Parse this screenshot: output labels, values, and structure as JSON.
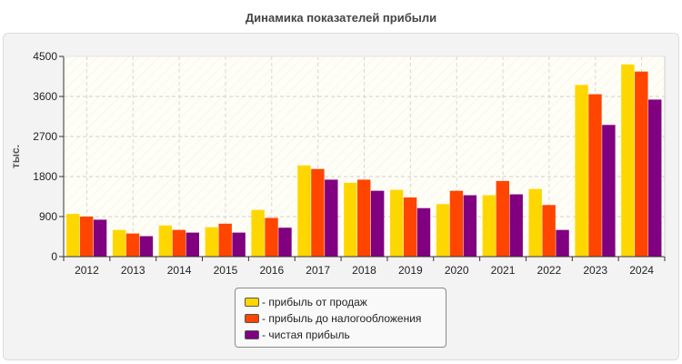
{
  "chart_data": {
    "type": "bar",
    "title": "Динамика показателей прибыли",
    "ylabel": "тыс.",
    "xlabel": "",
    "ylim": [
      0,
      4500
    ],
    "yticks": [
      0,
      900,
      1800,
      2700,
      3600,
      4500
    ],
    "categories": [
      "2012",
      "2013",
      "2014",
      "2015",
      "2016",
      "2017",
      "2018",
      "2019",
      "2020",
      "2021",
      "2022",
      "2023",
      "2024"
    ],
    "series": [
      {
        "name": "- прибыль от продаж",
        "color": "#FFD700",
        "values": [
          960,
          600,
          700,
          660,
          1050,
          2050,
          1660,
          1500,
          1180,
          1380,
          1520,
          3860,
          4320
        ]
      },
      {
        "name": "- прибыль до налогообложения",
        "color": "#FF4500",
        "values": [
          900,
          520,
          600,
          740,
          870,
          1970,
          1730,
          1330,
          1480,
          1700,
          1160,
          3650,
          4160
        ]
      },
      {
        "name": "- чистая прибыль",
        "color": "#800080",
        "values": [
          830,
          460,
          540,
          540,
          650,
          1730,
          1480,
          1090,
          1380,
          1400,
          600,
          2960,
          3530
        ]
      }
    ],
    "grid": true,
    "legend_position": "bottom-center"
  }
}
